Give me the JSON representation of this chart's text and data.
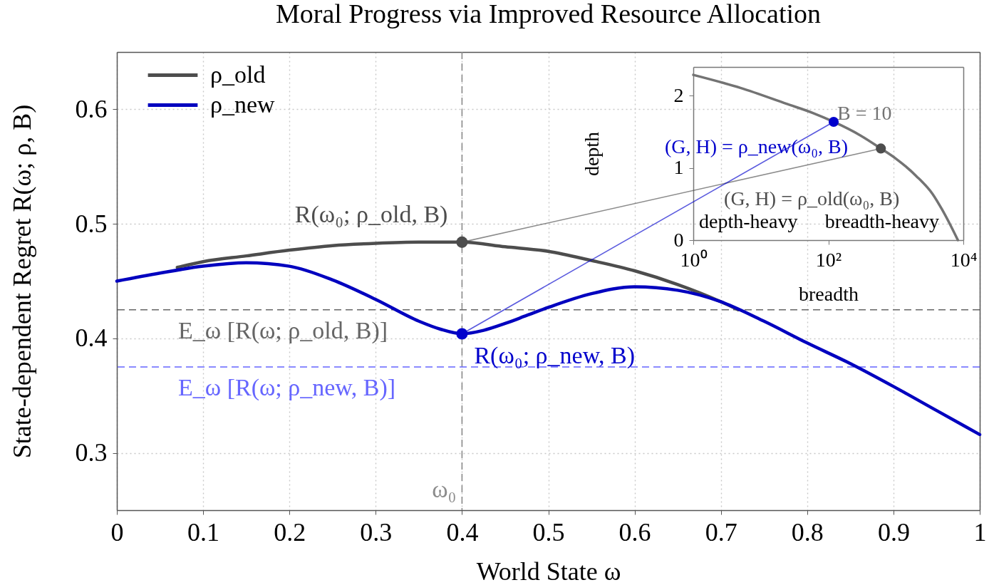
{
  "chart_data": [
    {
      "type": "line",
      "title": "Moral Progress via Improved Resource Allocation",
      "xlabel": "World State ω",
      "ylabel": "State-dependent Regret R(ω; ρ, B)",
      "xlim": [
        0,
        1
      ],
      "ylim": [
        0.25,
        0.65
      ],
      "xticks": [
        0,
        0.1,
        0.2,
        0.3,
        0.4,
        0.5,
        0.6,
        0.7,
        0.8,
        0.9,
        1
      ],
      "yticks": [
        0.3,
        0.4,
        0.5,
        0.6
      ],
      "grid": true,
      "legend": "top left",
      "marker": "none",
      "line_style": "solid",
      "series": [
        {
          "name": "ρ_old",
          "color": "#4d4d4d",
          "x": [
            0.07,
            0.1,
            0.15,
            0.2,
            0.25,
            0.3,
            0.35,
            0.4,
            0.45,
            0.5,
            0.55,
            0.6,
            0.65,
            0.7,
            0.72
          ],
          "values": [
            0.462,
            0.467,
            0.472,
            0.477,
            0.481,
            0.483,
            0.484,
            0.484,
            0.48,
            0.476,
            0.468,
            0.459,
            0.447,
            0.432,
            0.425
          ]
        },
        {
          "name": "ρ_new",
          "color": "#0000bf",
          "x": [
            0,
            0.05,
            0.1,
            0.15,
            0.2,
            0.25,
            0.3,
            0.35,
            0.375,
            0.4,
            0.425,
            0.45,
            0.475,
            0.5,
            0.55,
            0.6,
            0.65,
            0.7,
            0.75,
            0.8,
            0.85,
            0.9,
            0.95,
            1
          ],
          "values": [
            0.45,
            0.457,
            0.463,
            0.466,
            0.463,
            0.451,
            0.434,
            0.415,
            0.408,
            0.404,
            0.407,
            0.413,
            0.42,
            0.427,
            0.439,
            0.445,
            0.442,
            0.432,
            0.415,
            0.396,
            0.378,
            0.358,
            0.337,
            0.316
          ]
        },
        {
          "type": "scatter",
          "marker": "circle",
          "color": "#4d4d4d",
          "x": [
            0.4
          ],
          "values": [
            0.484
          ]
        },
        {
          "type": "scatter",
          "marker": "circle",
          "color": "#0000cc",
          "x": [
            0.4
          ],
          "values": [
            0.404
          ]
        }
      ],
      "ref_lines": [
        {
          "axis": "x",
          "value": 0.4,
          "label": "ω₀",
          "color": "#8c8c8c",
          "line_style": "dashed"
        },
        {
          "axis": "y",
          "value": 0.425,
          "label": "E_ω [R(ω; ρ_old, B)]",
          "color": "#666666",
          "line_style": "dashed"
        },
        {
          "axis": "y",
          "value": 0.375,
          "label": "E_ω [R(ω; ρ_new, B)]",
          "color": "#6666ff",
          "line_style": "dashed"
        }
      ],
      "annotations": [
        {
          "text": "R(ω₀; ρ_old, B)",
          "x": 0.4,
          "y": 0.484
        },
        {
          "text": "R(ω₀; ρ_new, B)",
          "x": 0.4,
          "y": 0.404
        }
      ]
    },
    {
      "type": "line",
      "xlabel": "breadth",
      "ylabel": "depth",
      "log": "x",
      "xlim": [
        1,
        10000
      ],
      "ylim": [
        0,
        2.4
      ],
      "xticks": [
        {
          "value": 1,
          "label": "10⁰"
        },
        {
          "value": 100,
          "label": "10²"
        },
        {
          "value": 10000,
          "label": "10⁴"
        }
      ],
      "yticks": [
        0,
        1,
        2
      ],
      "marker": "none",
      "line_style": "solid",
      "series": [
        {
          "name": "B = 10",
          "color": "#737373",
          "x": [
            1,
            5,
            24,
            60,
            120,
            300,
            600,
            1000,
            2000,
            3500,
            4800,
            6500,
            8300
          ],
          "values": [
            2.29,
            2.11,
            1.89,
            1.76,
            1.64,
            1.45,
            1.27,
            1.13,
            0.89,
            0.64,
            0.43,
            0.2,
            0
          ]
        },
        {
          "type": "scatter",
          "marker": "circle",
          "color": "#4d4d4d",
          "x": [
            600
          ],
          "values": [
            1.27
          ]
        },
        {
          "type": "scatter",
          "marker": "circle",
          "color": "#0000cc",
          "x": [
            120
          ],
          "values": [
            1.64
          ]
        }
      ],
      "annotations": [
        {
          "text": "(G, H) = ρ_old(ω₀, B)",
          "x": 600,
          "y": 1.27
        },
        {
          "text": "(G, H) = ρ_new(ω₀, B)",
          "x": 120,
          "y": 1.64
        },
        "depth-heavy",
        "breadth-heavy"
      ]
    }
  ]
}
